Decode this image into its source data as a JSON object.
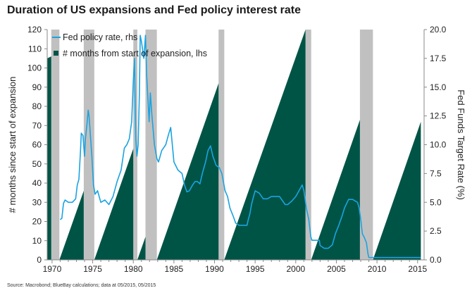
{
  "title": "Duration of US expansions and Fed policy interest rate",
  "source": "Source: Macrobond; BlueBay calculations; data at 05/2015, 05/2015",
  "colors": {
    "expansion": "#005446",
    "fed_line": "#1ba3e0",
    "recession": "#c0c0c0",
    "axis": "#888888"
  },
  "chart_data": {
    "type": "area",
    "title": "Duration of US expansions and Fed policy interest rate",
    "xlabel": "",
    "ylabel_left": "# months since start of expansion",
    "ylabel_right": "Fed Funds Target Rate (%)",
    "xlim": [
      1969.4,
      2015.8
    ],
    "ylim_left": [
      0,
      120
    ],
    "ylim_right": [
      0,
      20
    ],
    "xticks": [
      1970,
      1975,
      1980,
      1985,
      1990,
      1995,
      2000,
      2005,
      2010,
      2015
    ],
    "xtick_labels": [
      "1970",
      "1975",
      "1980",
      "1985",
      "1990",
      "1995",
      "2000",
      "2005",
      "2010",
      "2015"
    ],
    "yticks_left": [
      0,
      10,
      20,
      30,
      40,
      50,
      60,
      70,
      80,
      90,
      100,
      110,
      120
    ],
    "ytick_labels_left": [
      "0",
      "10",
      "20",
      "30",
      "40",
      "50",
      "60",
      "70",
      "80",
      "90",
      "100",
      "110",
      "120"
    ],
    "yticks_right": [
      0,
      2.5,
      5,
      7.5,
      10,
      12.5,
      15,
      17.5,
      20
    ],
    "ytick_labels_right": [
      "0.0",
      "2.5",
      "5.0",
      "7.5",
      "10.0",
      "12.5",
      "15.0",
      "17.5",
      "20.0"
    ],
    "legend": [
      "Fed policy rate, rhs",
      "# months from start of expansion, lhs"
    ],
    "legend_position": "top-left",
    "recessions": [
      [
        1969.9,
        1970.9
      ],
      [
        1973.9,
        1975.2
      ],
      [
        1980.0,
        1980.5
      ],
      [
        1981.5,
        1982.9
      ],
      [
        1990.5,
        1991.2
      ],
      [
        2001.2,
        2001.9
      ],
      [
        2007.9,
        2009.5
      ]
    ],
    "expansions": [
      {
        "start": 1969.4,
        "end": 1969.9,
        "start_months": 105,
        "end_months": 106
      },
      {
        "start": 1970.9,
        "end": 1973.9,
        "start_months": 0,
        "end_months": 36
      },
      {
        "start": 1975.2,
        "end": 1980.0,
        "start_months": 0,
        "end_months": 58
      },
      {
        "start": 1980.5,
        "end": 1981.5,
        "start_months": 0,
        "end_months": 12
      },
      {
        "start": 1982.9,
        "end": 1990.5,
        "start_months": 0,
        "end_months": 92
      },
      {
        "start": 1991.2,
        "end": 2001.2,
        "start_months": 0,
        "end_months": 120
      },
      {
        "start": 2001.9,
        "end": 2007.9,
        "start_months": 0,
        "end_months": 73
      },
      {
        "start": 2009.5,
        "end": 2015.4,
        "start_months": 0,
        "end_months": 72
      }
    ],
    "series": [
      {
        "name": "Fed policy rate, rhs",
        "axis": "right",
        "x": [
          1971.0,
          1971.2,
          1971.4,
          1971.6,
          1972.0,
          1972.5,
          1972.9,
          1973.1,
          1973.3,
          1973.5,
          1973.6,
          1973.8,
          1974.0,
          1974.1,
          1974.3,
          1974.45,
          1974.55,
          1974.7,
          1974.9,
          1975.1,
          1975.3,
          1975.6,
          1976.0,
          1976.5,
          1977.0,
          1977.5,
          1978.0,
          1978.5,
          1978.9,
          1979.2,
          1979.5,
          1979.8,
          1980.0,
          1980.15,
          1980.3,
          1980.45,
          1980.6,
          1980.75,
          1980.85,
          1981.0,
          1981.3,
          1981.5,
          1981.65,
          1981.8,
          1981.95,
          1982.1,
          1982.3,
          1982.6,
          1982.9,
          1983.1,
          1983.5,
          1984.0,
          1984.3,
          1984.6,
          1984.8,
          1985.0,
          1985.5,
          1986.0,
          1986.3,
          1986.6,
          1986.9,
          1987.3,
          1987.6,
          1987.9,
          1988.2,
          1988.5,
          1988.9,
          1989.2,
          1989.5,
          1989.8,
          1990.2,
          1990.6,
          1990.9,
          1991.3,
          1991.6,
          1991.9,
          1992.3,
          1992.6,
          1993.0,
          1993.5,
          1994.0,
          1994.15,
          1994.35,
          1994.55,
          1994.8,
          1995.0,
          1995.5,
          1996.0,
          1996.5,
          1997.0,
          1997.5,
          1998.0,
          1998.7,
          1999.0,
          1999.5,
          2000.0,
          2000.4,
          2000.8,
          2001.0,
          2001.3,
          2001.6,
          2001.85,
          2002.0,
          2002.9,
          2003.0,
          2003.5,
          2004.0,
          2004.5,
          2004.9,
          2005.3,
          2005.7,
          2006.0,
          2006.5,
          2007.0,
          2007.6,
          2007.8,
          2008.0,
          2008.2,
          2008.4,
          2008.7,
          2008.9,
          2009.0,
          2015.4
        ],
        "values": [
          3.5,
          3.6,
          4.9,
          5.2,
          5.0,
          5.0,
          5.3,
          6.5,
          7.0,
          9.5,
          11.0,
          10.8,
          9.0,
          10.5,
          11.8,
          13.0,
          12.5,
          11.0,
          9.0,
          6.5,
          5.7,
          6.0,
          5.0,
          5.2,
          4.8,
          5.5,
          6.8,
          7.8,
          9.7,
          10.0,
          10.5,
          12.0,
          15.5,
          17.5,
          10.5,
          9.0,
          10.0,
          14.5,
          19.5,
          19.0,
          17.5,
          19.5,
          16.0,
          14.0,
          12.0,
          14.5,
          12.5,
          10.0,
          8.8,
          8.5,
          9.5,
          10.0,
          10.8,
          11.5,
          10.0,
          8.5,
          7.8,
          7.5,
          6.5,
          5.9,
          6.0,
          6.5,
          6.8,
          6.8,
          6.6,
          7.5,
          8.5,
          9.5,
          9.9,
          9.0,
          8.2,
          8.0,
          7.5,
          6.0,
          5.5,
          4.5,
          3.8,
          3.2,
          3.0,
          3.0,
          3.0,
          3.5,
          4.0,
          4.8,
          5.5,
          6.0,
          5.8,
          5.3,
          5.3,
          5.5,
          5.5,
          5.5,
          4.8,
          4.8,
          5.1,
          5.5,
          6.0,
          6.5,
          6.0,
          4.5,
          3.5,
          2.0,
          1.7,
          1.7,
          1.25,
          1.0,
          1.0,
          1.3,
          2.3,
          3.0,
          3.8,
          4.5,
          5.25,
          5.25,
          5.0,
          4.5,
          3.5,
          2.25,
          2.0,
          1.5,
          0.5,
          0.2,
          0.2
        ]
      },
      {
        "name": "# months from start of expansion, lhs",
        "axis": "left",
        "type": "area"
      }
    ]
  }
}
